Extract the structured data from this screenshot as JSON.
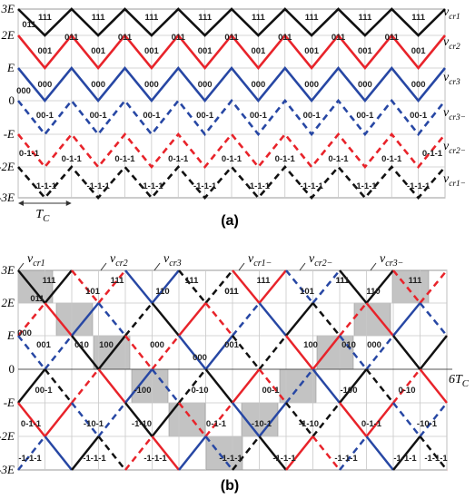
{
  "caption_a": "(a)",
  "caption_b": "(b)",
  "y_ticks": [
    {
      "label": "3E",
      "italic": true
    },
    {
      "label": "2E",
      "italic": true
    },
    {
      "label": "E",
      "italic": true
    },
    {
      "label": "0",
      "italic": false
    },
    {
      "label": "-E",
      "italic": true
    },
    {
      "label": "-2E",
      "italic": true
    },
    {
      "label": "-3E",
      "italic": true
    }
  ],
  "colors": {
    "black": "#111111",
    "red": "#e8232a",
    "blue": "#2747a4",
    "grid": "#c8c8c8",
    "shade": "#b9b9b9"
  },
  "panel_a": {
    "carrier_labels": [
      "v_cr1",
      "v_cr2",
      "v_cr3",
      "v_cr3−",
      "v_cr2−",
      "v_cr1−"
    ],
    "carrier_labels_display": [
      {
        "main": "v",
        "sub": "cr1"
      },
      {
        "main": "v",
        "sub": "cr2"
      },
      {
        "main": "v",
        "sub": "cr3"
      },
      {
        "main": "v",
        "sub": "cr3−"
      },
      {
        "main": "v",
        "sub": "cr2−"
      },
      {
        "main": "v",
        "sub": "cr1−"
      }
    ],
    "period_label": {
      "main": "T",
      "sub": "C"
    },
    "band_codes": {
      "peak": "111",
      "b2": "011",
      "b1": "001",
      "b0": "000",
      "bm1": "00-1",
      "bm2": "0-1-1",
      "bm3": "-1-1-1"
    }
  },
  "panel_b": {
    "carrier_labels_display": [
      {
        "main": "v",
        "sub": "cr1"
      },
      {
        "main": "v",
        "sub": "cr2"
      },
      {
        "main": "v",
        "sub": "cr3"
      },
      {
        "main": "v",
        "sub": "cr1−"
      },
      {
        "main": "v",
        "sub": "cr2−"
      },
      {
        "main": "v",
        "sub": "cr3−"
      }
    ],
    "axis_end_label": {
      "main": "6T",
      "sub": "C"
    },
    "codes": [
      "111",
      "011",
      "111",
      "101",
      "111",
      "110",
      "111",
      "011",
      "111",
      "101",
      "111",
      "110",
      "111",
      "011",
      "001",
      "000",
      "100",
      "010",
      "000",
      "001",
      "000",
      "100",
      "010",
      "000",
      "00-1",
      "-100",
      "0-10",
      "00-1",
      "-100",
      "0-10",
      "0-1-1",
      "-10-1",
      "-1-10",
      "0-1-1",
      "-10-1",
      "-1-10",
      "0-1-1",
      "-10-1",
      "-1-1-1",
      "-1-1-1",
      "-1-1-1",
      "-1-1-1",
      "-1-1-1",
      "-1-1-1",
      "-1-1-1",
      "-1-1-1"
    ]
  }
}
